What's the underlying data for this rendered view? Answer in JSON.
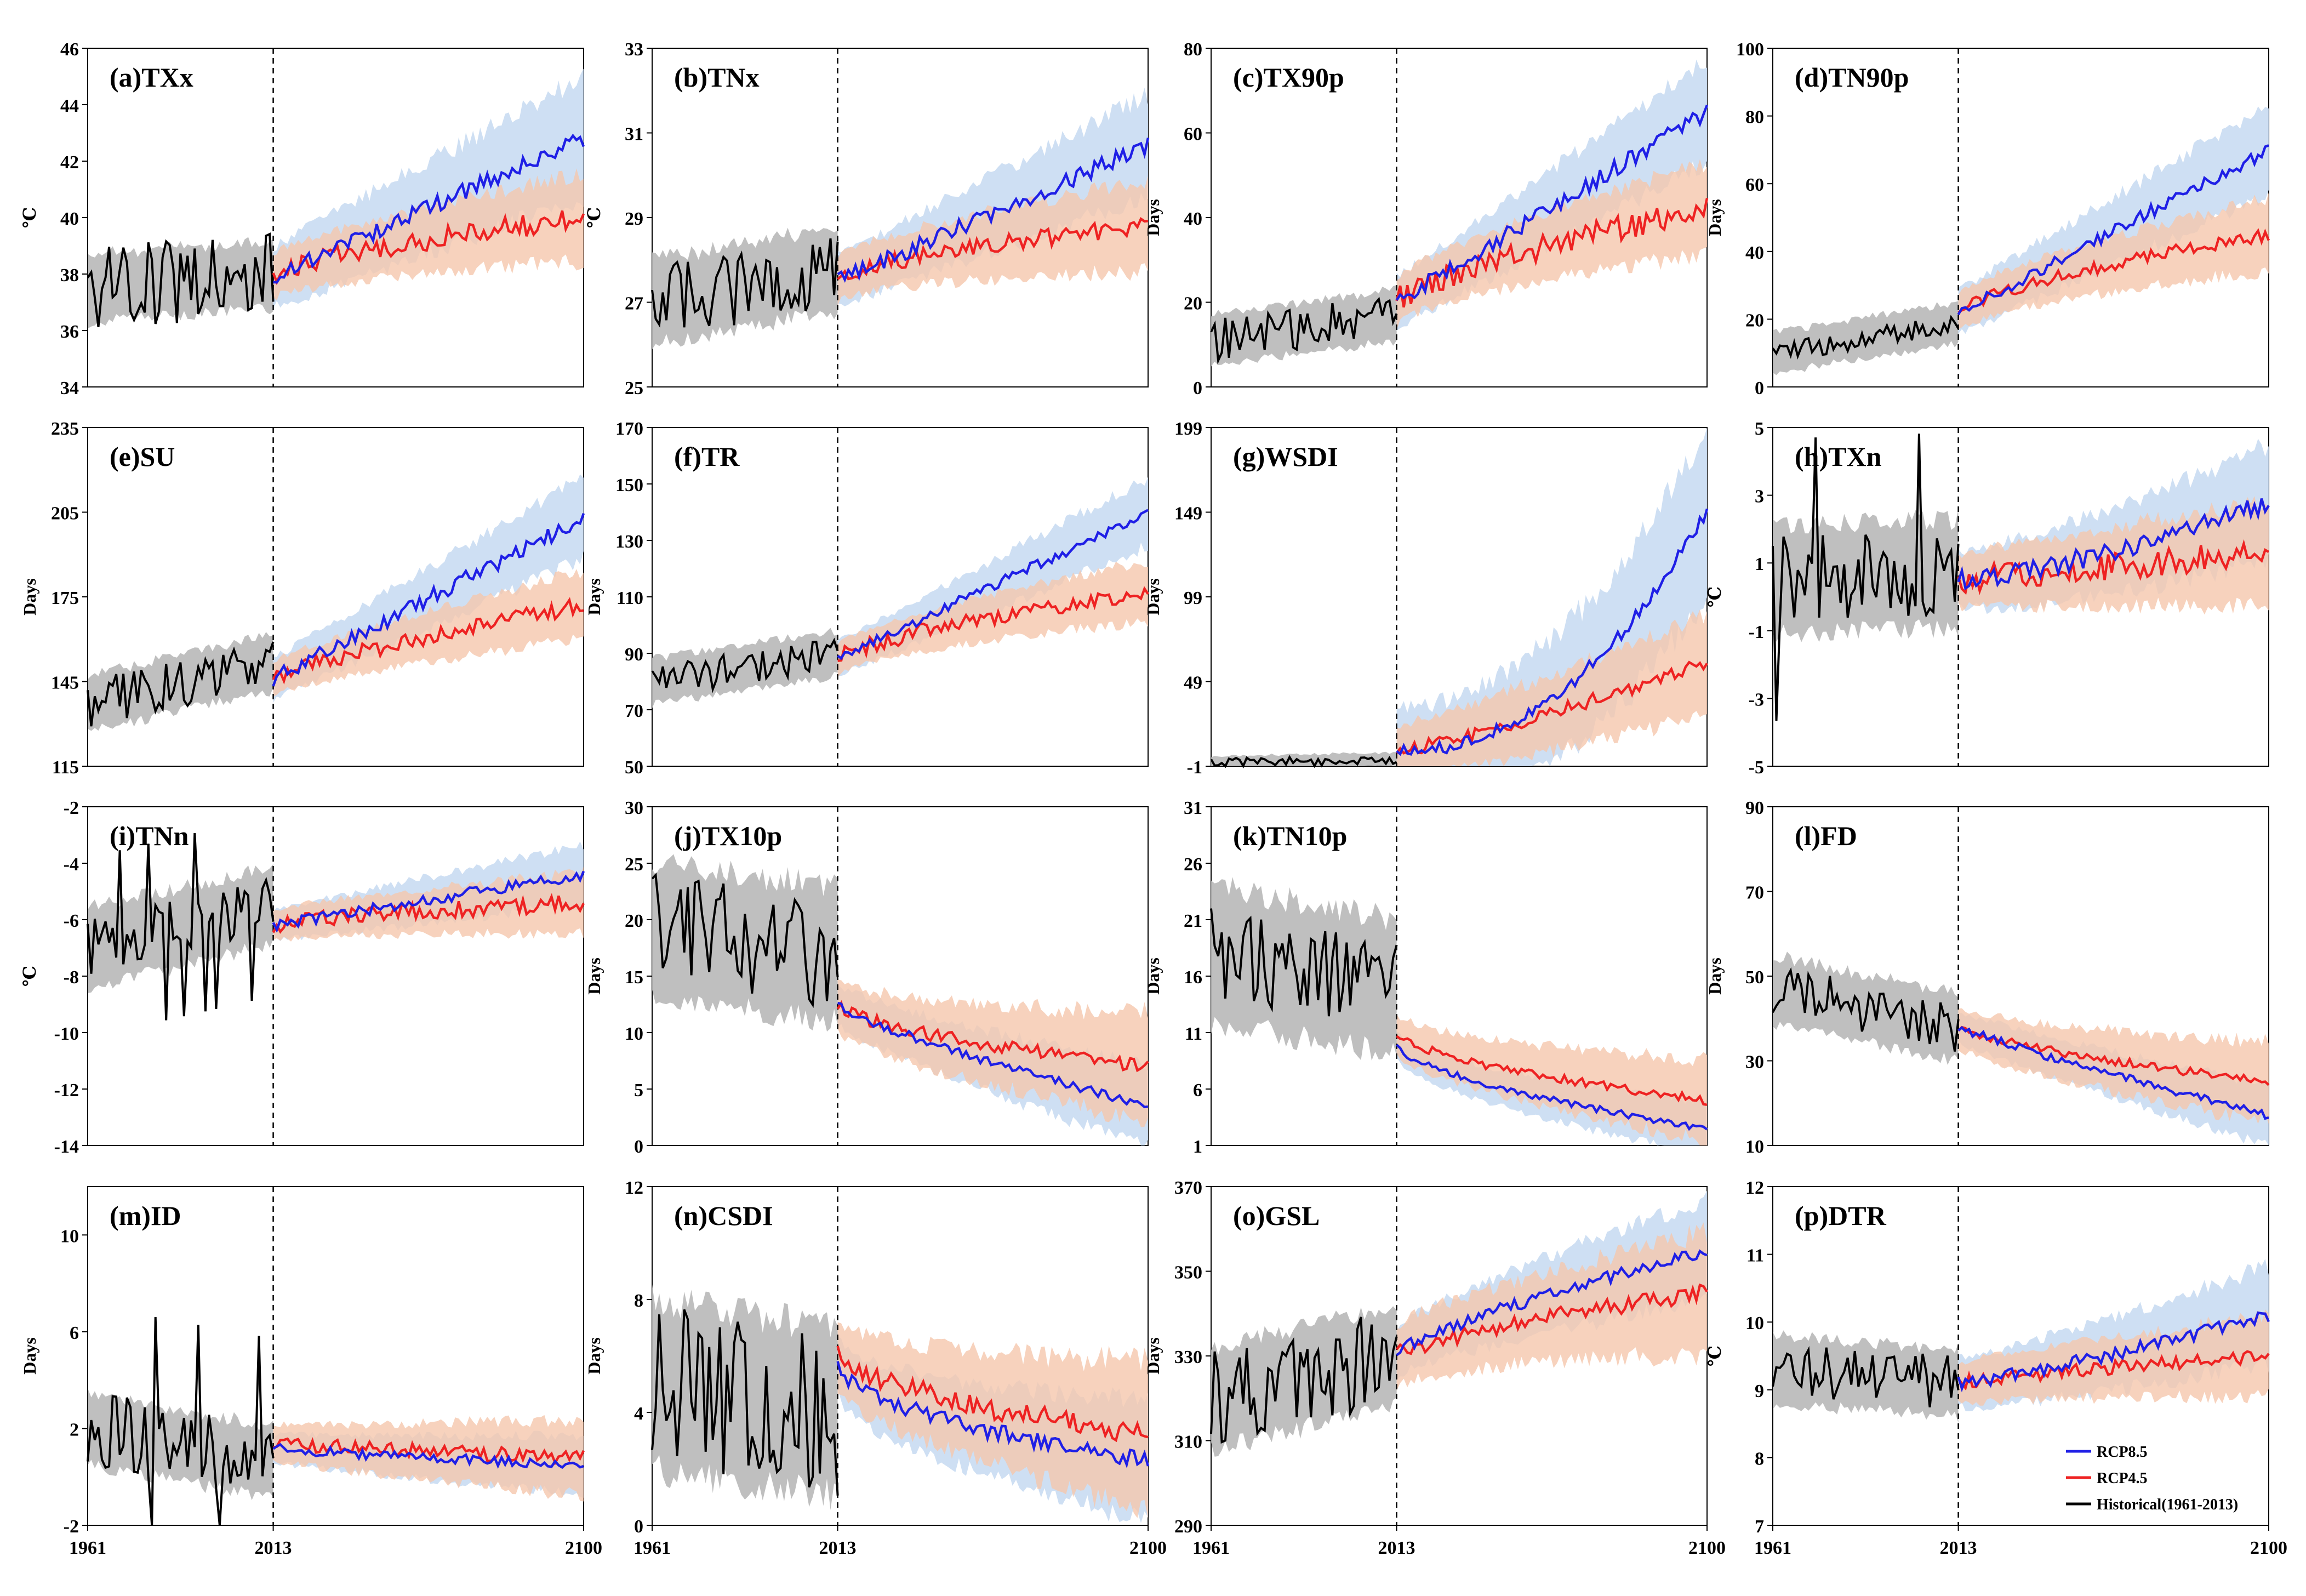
{
  "colors": {
    "historical": "#000000",
    "rcp85": "#1f1fe6",
    "rcp45": "#ee2222",
    "historical_band": "#b4b4b4",
    "rcp85_band": "#c9dcf2",
    "rcp45_band": "#f5c7ad"
  },
  "legend": {
    "rcp85": "RCP8.5",
    "rcp45": "RCP4.5",
    "historical": "Historical(1961-2013)"
  },
  "x_ticks": [
    "1961",
    "2013",
    "2100"
  ],
  "chart_data": [
    {
      "type": "line",
      "title": "(a)TXx",
      "ylabel": "℃",
      "ylim": [
        34,
        46
      ],
      "yticks": [
        "34",
        "36",
        "38",
        "40",
        "42",
        "44",
        "46"
      ],
      "x": [
        1961,
        2100
      ],
      "divider": 2013,
      "hist": {
        "start": 37.5,
        "end": 38.0,
        "amp": 1.5,
        "spikes": 0,
        "band": 1.2
      },
      "rcp85": {
        "start": 37.9,
        "end": 42.8,
        "shape": 1.0,
        "noise": 0.3,
        "band": 1.8
      },
      "rcp45": {
        "start": 37.9,
        "end": 40.0,
        "shape": 0.7,
        "noise": 0.4,
        "band": 1.3
      }
    },
    {
      "type": "line",
      "title": "(b)TNx",
      "ylabel": "℃",
      "ylim": [
        25,
        33
      ],
      "yticks": [
        "25",
        "27",
        "29",
        "31",
        "33"
      ],
      "x": [
        1961,
        2100
      ],
      "divider": 2013,
      "hist": {
        "start": 27.0,
        "end": 27.8,
        "amp": 0.9,
        "spikes": 0,
        "band": 1.0
      },
      "rcp85": {
        "start": 27.5,
        "end": 30.7,
        "shape": 1.0,
        "noise": 0.2,
        "band": 1.0
      },
      "rcp45": {
        "start": 27.5,
        "end": 28.8,
        "shape": 0.6,
        "noise": 0.2,
        "band": 0.9
      }
    },
    {
      "type": "line",
      "title": "(c)TX90p",
      "ylabel": "Days",
      "ylim": [
        0,
        80
      ],
      "yticks": [
        "0",
        "20",
        "40",
        "60",
        "80"
      ],
      "x": [
        1961,
        2100
      ],
      "divider": 2013,
      "hist": {
        "start": 11,
        "end": 17,
        "amp": 5,
        "spikes": 0,
        "band": 6
      },
      "rcp85": {
        "start": 20,
        "end": 65,
        "shape": 1.0,
        "noise": 2,
        "band": 10
      },
      "rcp45": {
        "start": 20,
        "end": 42,
        "shape": 0.7,
        "noise": 3,
        "band": 9
      }
    },
    {
      "type": "line",
      "title": "(d)TN90p",
      "ylabel": "Days",
      "ylim": [
        0,
        100
      ],
      "yticks": [
        "0",
        "20",
        "40",
        "60",
        "80",
        "100"
      ],
      "x": [
        1961,
        2100
      ],
      "divider": 2013,
      "hist": {
        "start": 10,
        "end": 19,
        "amp": 3,
        "spikes": 0,
        "band": 6
      },
      "rcp85": {
        "start": 22,
        "end": 70,
        "shape": 1.0,
        "noise": 2,
        "band": 11
      },
      "rcp45": {
        "start": 22,
        "end": 45,
        "shape": 0.7,
        "noise": 2,
        "band": 9
      }
    },
    {
      "type": "line",
      "title": "(e)SU",
      "ylabel": "Days",
      "ylim": [
        115,
        235
      ],
      "yticks": [
        "115",
        "145",
        "175",
        "205",
        "235"
      ],
      "x": [
        1961,
        2100
      ],
      "divider": 2013,
      "hist": {
        "start": 137,
        "end": 152,
        "amp": 9,
        "spikes": 0,
        "band": 10
      },
      "rcp85": {
        "start": 146,
        "end": 203,
        "shape": 1.0,
        "noise": 3,
        "band": 12
      },
      "rcp45": {
        "start": 146,
        "end": 172,
        "shape": 0.8,
        "noise": 3,
        "band": 10
      }
    },
    {
      "type": "line",
      "title": "(f)TR",
      "ylabel": "Days",
      "ylim": [
        50,
        170
      ],
      "yticks": [
        "50",
        "70",
        "90",
        "110",
        "130",
        "150",
        "170"
      ],
      "x": [
        1961,
        2100
      ],
      "divider": 2013,
      "hist": {
        "start": 80,
        "end": 90,
        "amp": 6,
        "spikes": 0,
        "band": 8
      },
      "rcp85": {
        "start": 88,
        "end": 140,
        "shape": 1.0,
        "noise": 2,
        "band": 10
      },
      "rcp45": {
        "start": 88,
        "end": 112,
        "shape": 0.7,
        "noise": 3,
        "band": 9
      }
    },
    {
      "type": "line",
      "title": "(g)WSDI",
      "ylabel": "Days",
      "ylim": [
        -1,
        199
      ],
      "yticks": [
        "-1",
        "49",
        "99",
        "149",
        "199"
      ],
      "x": [
        1961,
        2100
      ],
      "divider": 2013,
      "hist": {
        "start": 1,
        "end": 3,
        "amp": 3,
        "spikes": 0,
        "band": 4
      },
      "rcp85": {
        "start": 8,
        "end": 150,
        "shape": 2.2,
        "noise": 4,
        "band": 40
      },
      "rcp45": {
        "start": 8,
        "end": 60,
        "shape": 1.2,
        "noise": 4,
        "band": 25
      }
    },
    {
      "type": "line",
      "title": "(h)TXn",
      "ylabel": "℃",
      "ylim": [
        -5,
        5
      ],
      "yticks": [
        "-5",
        "-3",
        "-1",
        "1",
        "3",
        "5"
      ],
      "x": [
        1961,
        2100
      ],
      "divider": 2013,
      "hist": {
        "start": 0.5,
        "end": 0.7,
        "amp": 1.3,
        "spikes": 2,
        "band": 1.6
      },
      "rcp85": {
        "start": 0.5,
        "end": 2.8,
        "shape": 1.4,
        "noise": 0.3,
        "band": 1.4
      },
      "rcp45": {
        "start": 0.5,
        "end": 1.3,
        "shape": 1.0,
        "noise": 0.4,
        "band": 1.3
      }
    },
    {
      "type": "line",
      "title": "(i)TNn",
      "ylabel": "℃",
      "ylim": [
        -14,
        -2
      ],
      "yticks": [
        "-14",
        "-12",
        "-10",
        "-8",
        "-6",
        "-4",
        "-2"
      ],
      "x": [
        1961,
        2100
      ],
      "divider": 2013,
      "hist": {
        "start": -7,
        "end": -5.5,
        "amp": 1.0,
        "spikes": 3,
        "band": 1.4
      },
      "rcp85": {
        "start": -6.2,
        "end": -4.4,
        "shape": 1.0,
        "noise": 0.2,
        "band": 0.9
      },
      "rcp45": {
        "start": -6.2,
        "end": -5.4,
        "shape": 0.7,
        "noise": 0.3,
        "band": 0.9
      }
    },
    {
      "type": "line",
      "title": "(j)TX10p",
      "ylabel": "Days",
      "ylim": [
        0,
        30
      ],
      "yticks": [
        "0",
        "5",
        "10",
        "15",
        "20",
        "25",
        "30"
      ],
      "x": [
        1961,
        2100
      ],
      "divider": 2013,
      "hist": {
        "start": 19,
        "end": 17,
        "amp": 5,
        "spikes": 0,
        "band": 6
      },
      "rcp85": {
        "start": 12.5,
        "end": 3.5,
        "shape": 0.8,
        "noise": 0.4,
        "band": 3
      },
      "rcp45": {
        "start": 12.5,
        "end": 7,
        "shape": 0.6,
        "noise": 0.6,
        "band": 4
      }
    },
    {
      "type": "line",
      "title": "(k)TN10p",
      "ylabel": "Days",
      "ylim": [
        1,
        31
      ],
      "yticks": [
        "1",
        "6",
        "11",
        "16",
        "21",
        "26",
        "31"
      ],
      "x": [
        1961,
        2100
      ],
      "divider": 2013,
      "hist": {
        "start": 18,
        "end": 15,
        "amp": 4,
        "spikes": 0,
        "band": 6
      },
      "rcp85": {
        "start": 10,
        "end": 2.5,
        "shape": 0.6,
        "noise": 0.3,
        "band": 2
      },
      "rcp45": {
        "start": 11,
        "end": 5,
        "shape": 0.6,
        "noise": 0.4,
        "band": 3
      }
    },
    {
      "type": "line",
      "title": "(l)FD",
      "ylabel": "Days",
      "ylim": [
        10,
        90
      ],
      "yticks": [
        "10",
        "30",
        "50",
        "70",
        "90"
      ],
      "x": [
        1961,
        2100
      ],
      "divider": 2013,
      "hist": {
        "start": 47,
        "end": 38,
        "amp": 6,
        "spikes": 0,
        "band": 8
      },
      "rcp85": {
        "start": 38,
        "end": 17,
        "shape": 0.9,
        "noise": 1,
        "band": 6
      },
      "rcp45": {
        "start": 38,
        "end": 25,
        "shape": 0.7,
        "noise": 1,
        "band": 8
      }
    },
    {
      "type": "line",
      "title": "(m)ID",
      "ylabel": "Days",
      "ylim": [
        -2,
        12
      ],
      "yticks": [
        "-2",
        "2",
        "6",
        "10"
      ],
      "x": [
        1961,
        2100
      ],
      "divider": 2013,
      "hist": {
        "start": 2,
        "end": 0.6,
        "amp": 1.6,
        "spikes": 3,
        "band": 1.5
      },
      "rcp85": {
        "start": 1.2,
        "end": 0.5,
        "shape": 0.8,
        "noise": 0.2,
        "band": 1.0
      },
      "rcp45": {
        "start": 1.4,
        "end": 0.8,
        "shape": 0.8,
        "noise": 0.3,
        "band": 1.3
      }
    },
    {
      "type": "line",
      "title": "(n)CSDI",
      "ylabel": "Days",
      "ylim": [
        0,
        12
      ],
      "yticks": [
        "0",
        "4",
        "8",
        "12"
      ],
      "x": [
        1961,
        2100
      ],
      "divider": 2013,
      "hist": {
        "start": 5,
        "end": 4,
        "amp": 3,
        "spikes": 0,
        "band": 3
      },
      "rcp85": {
        "start": 5.8,
        "end": 2.3,
        "shape": 0.5,
        "noise": 0.3,
        "band": 1.8
      },
      "rcp45": {
        "start": 6,
        "end": 3.2,
        "shape": 0.6,
        "noise": 0.4,
        "band": 2.2
      }
    },
    {
      "type": "line",
      "title": "(o)GSL",
      "ylabel": "Days",
      "ylim": [
        290,
        370
      ],
      "yticks": [
        "290",
        "310",
        "330",
        "350",
        "370"
      ],
      "x": [
        1961,
        2100
      ],
      "divider": 2013,
      "hist": {
        "start": 320,
        "end": 330,
        "amp": 12,
        "spikes": 0,
        "band": 12
      },
      "rcp85": {
        "start": 331,
        "end": 355,
        "shape": 0.8,
        "noise": 1.5,
        "band": 10
      },
      "rcp45": {
        "start": 330,
        "end": 345,
        "shape": 0.7,
        "noise": 2,
        "band": 12
      }
    },
    {
      "type": "line",
      "title": "(p)DTR",
      "ylabel": "℃",
      "ylim": [
        7,
        12
      ],
      "yticks": [
        "7",
        "8",
        "9",
        "10",
        "11",
        "12"
      ],
      "x": [
        1961,
        2100
      ],
      "divider": 2013,
      "hist": {
        "start": 9.3,
        "end": 9.1,
        "amp": 0.4,
        "spikes": 0,
        "band": 0.5
      },
      "rcp85": {
        "start": 9.1,
        "end": 10.1,
        "shape": 1.2,
        "noise": 0.1,
        "band": 0.6
      },
      "rcp45": {
        "start": 9.1,
        "end": 9.5,
        "shape": 0.8,
        "noise": 0.1,
        "band": 0.5
      }
    }
  ]
}
